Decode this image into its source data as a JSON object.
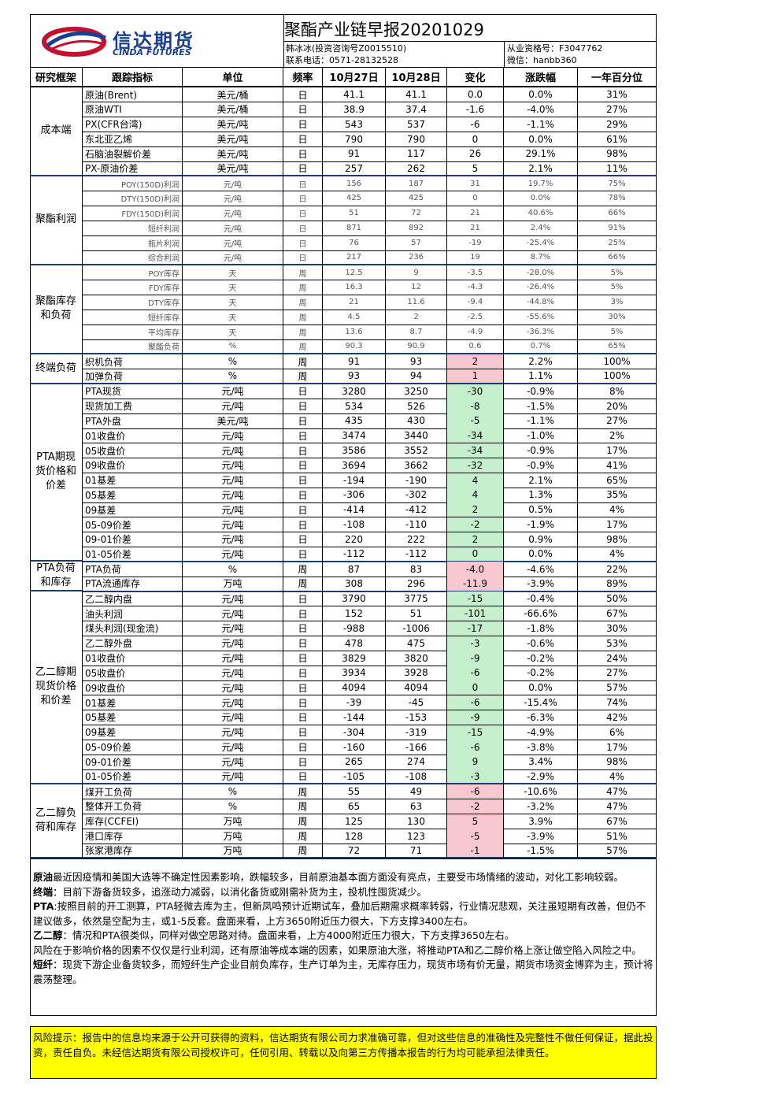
{
  "header": {
    "logo_cn": "信达期货",
    "logo_en": "CINDA FUTURES",
    "title": "聚酯产业链早报20201029",
    "analyst": "韩冰冰(投资咨询号Z0015510)",
    "phone": "联系电话：0571-28132528",
    "license": "从业资格号：F3047762",
    "wechat": "微信：hanbb360"
  },
  "table": {
    "columns": [
      "研究框架",
      "跟踪指标",
      "单位",
      "频率",
      "10月27日",
      "10月28日",
      "变化",
      "涨跌幅",
      "一年百分位"
    ],
    "groups": [
      {
        "name": "成本端",
        "rows": [
          [
            "原油(Brent)",
            "美元/桶",
            "日",
            "41.1",
            "41.1",
            "0.0",
            "0.0%",
            "31%"
          ],
          [
            "原油WTI",
            "美元/桶",
            "日",
            "38.9",
            "37.4",
            "-1.6",
            "-4.0%",
            "27%"
          ],
          [
            "PX(CFR台湾)",
            "美元/吨",
            "日",
            "543",
            "537",
            "-6",
            "-1.1%",
            "29%"
          ],
          [
            "东北亚乙烯",
            "美元/吨",
            "日",
            "790",
            "790",
            "0",
            "0.0%",
            "61%"
          ],
          [
            "石脑油裂解价差",
            "美元/吨",
            "日",
            "91",
            "117",
            "26",
            "29.1%",
            "98%"
          ],
          [
            "PX-原油价差",
            "美元/吨",
            "日",
            "257",
            "262",
            "5",
            "2.1%",
            "11%"
          ]
        ]
      },
      {
        "name": "聚酯利润",
        "rows": [
          [
            "POY(150D)利润",
            "元/吨",
            "日",
            "156",
            "187",
            "31",
            "19.7%",
            "75%"
          ],
          [
            "DTY(150D)利润",
            "元/吨",
            "日",
            "425",
            "425",
            "0",
            "0.0%",
            "78%"
          ],
          [
            "FDY(150D)利润",
            "元/吨",
            "日",
            "51",
            "72",
            "21",
            "40.6%",
            "66%"
          ],
          [
            "短纤利润",
            "元/吨",
            "日",
            "871",
            "892",
            "21",
            "2.4%",
            "91%"
          ],
          [
            "瓶片利润",
            "元/吨",
            "日",
            "76",
            "57",
            "-19",
            "-25.4%",
            "25%"
          ],
          [
            "综合利润",
            "元/吨",
            "日",
            "217",
            "236",
            "19",
            "8.7%",
            "66%"
          ]
        ]
      },
      {
        "name": "聚酯库存和负荷",
        "rows": [
          [
            "POY库存",
            "天",
            "周",
            "12.5",
            "9",
            "-3.5",
            "-28.0%",
            "5%"
          ],
          [
            "FDY库存",
            "天",
            "周",
            "16.3",
            "12",
            "-4.3",
            "-26.4%",
            "5%"
          ],
          [
            "DTY库存",
            "天",
            "周",
            "21",
            "11.6",
            "-9.4",
            "-44.8%",
            "3%"
          ],
          [
            "短纤库存",
            "天",
            "周",
            "4.5",
            "2",
            "-2.5",
            "-55.6%",
            "30%"
          ],
          [
            "平均库存",
            "天",
            "周",
            "13.6",
            "8.7",
            "-4.9",
            "-36.3%",
            "5%"
          ],
          [
            "聚酯负荷",
            "%",
            "周",
            "90.3",
            "90.9",
            "0.6",
            "0.7%",
            "65%"
          ]
        ]
      },
      {
        "name": "终端负荷",
        "rows": [
          [
            "织机负荷",
            "%",
            "周",
            "91",
            "93",
            "2",
            "2.2%",
            "100%"
          ],
          [
            "加弹负荷",
            "%",
            "周",
            "93",
            "94",
            "1",
            "1.1%",
            "100%"
          ]
        ]
      },
      {
        "name": "PTA期现货价格和价差",
        "rows": [
          [
            "PTA现货",
            "元/吨",
            "日",
            "3280",
            "3250",
            "-30",
            "-0.9%",
            "8%"
          ],
          [
            "现货加工费",
            "元/吨",
            "日",
            "534",
            "526",
            "-8",
            "-1.5%",
            "20%"
          ],
          [
            "PTA外盘",
            "美元/吨",
            "日",
            "435",
            "430",
            "-5",
            "-1.1%",
            "27%"
          ],
          [
            "01收盘价",
            "元/吨",
            "日",
            "3474",
            "3440",
            "-34",
            "-1.0%",
            "2%"
          ],
          [
            "05收盘价",
            "元/吨",
            "日",
            "3586",
            "3552",
            "-34",
            "-0.9%",
            "17%"
          ],
          [
            "09收盘价",
            "元/吨",
            "日",
            "3694",
            "3662",
            "-32",
            "-0.9%",
            "41%"
          ],
          [
            "01基差",
            "元/吨",
            "日",
            "-194",
            "-190",
            "4",
            "2.1%",
            "65%"
          ],
          [
            "05基差",
            "元/吨",
            "日",
            "-306",
            "-302",
            "4",
            "1.3%",
            "35%"
          ],
          [
            "09基差",
            "元/吨",
            "日",
            "-414",
            "-412",
            "2",
            "0.5%",
            "4%"
          ],
          [
            "05-09价差",
            "元/吨",
            "日",
            "-108",
            "-110",
            "-2",
            "-1.9%",
            "17%"
          ],
          [
            "09-01价差",
            "元/吨",
            "日",
            "220",
            "222",
            "2",
            "0.9%",
            "98%"
          ],
          [
            "01-05价差",
            "元/吨",
            "日",
            "-112",
            "-112",
            "0",
            "0.0%",
            "4%"
          ]
        ]
      },
      {
        "name": "PTA负荷和库存",
        "rows": [
          [
            "PTA负荷",
            "%",
            "周",
            "87",
            "83",
            "-4.0",
            "-4.6%",
            "22%"
          ],
          [
            "PTA流通库存",
            "万吨",
            "周",
            "308",
            "296",
            "-11.9",
            "-3.9%",
            "89%"
          ]
        ]
      },
      {
        "name": "乙二醇期现货价格和价差",
        "rows": [
          [
            "乙二醇内盘",
            "元/吨",
            "日",
            "3790",
            "3775",
            "-15",
            "-0.4%",
            "50%"
          ],
          [
            "油头利润",
            "元/吨",
            "日",
            "152",
            "51",
            "-101",
            "-66.6%",
            "67%"
          ],
          [
            "煤头利润(现金流)",
            "元/吨",
            "日",
            "-988",
            "-1006",
            "-17",
            "-1.8%",
            "30%"
          ],
          [
            "乙二醇外盘",
            "元/吨",
            "日",
            "478",
            "475",
            "-3",
            "-0.6%",
            "53%"
          ],
          [
            "01收盘价",
            "元/吨",
            "日",
            "3829",
            "3820",
            "-9",
            "-0.2%",
            "24%"
          ],
          [
            "05收盘价",
            "元/吨",
            "日",
            "3934",
            "3928",
            "-6",
            "-0.2%",
            "27%"
          ],
          [
            "09收盘价",
            "元/吨",
            "日",
            "4094",
            "4094",
            "0",
            "0.0%",
            "57%"
          ],
          [
            "01基差",
            "元/吨",
            "日",
            "-39",
            "-45",
            "-6",
            "-15.4%",
            "74%"
          ],
          [
            "05基差",
            "元/吨",
            "日",
            "-144",
            "-153",
            "-9",
            "-6.3%",
            "42%"
          ],
          [
            "09基差",
            "元/吨",
            "日",
            "-304",
            "-319",
            "-15",
            "-4.9%",
            "6%"
          ],
          [
            "05-09价差",
            "元/吨",
            "日",
            "-160",
            "-166",
            "-6",
            "-3.8%",
            "17%"
          ],
          [
            "09-01价差",
            "元/吨",
            "日",
            "265",
            "274",
            "9",
            "3.4%",
            "98%"
          ],
          [
            "01-05价差",
            "元/吨",
            "日",
            "-105",
            "-108",
            "-3",
            "-2.9%",
            "4%"
          ]
        ]
      },
      {
        "name": "乙二醇负荷和库存",
        "rows": [
          [
            "煤开工负荷",
            "%",
            "周",
            "55",
            "49",
            "-6",
            "-10.6%",
            "47%"
          ],
          [
            "整体开工负荷",
            "%",
            "周",
            "65",
            "63",
            "-2",
            "-3.2%",
            "47%"
          ],
          [
            "库存(CCFEI)",
            "万吨",
            "周",
            "125",
            "130",
            "5",
            "3.9%",
            "67%"
          ],
          [
            "港口库存",
            "万吨",
            "周",
            "128",
            "123",
            "-5",
            "-3.9%",
            "51%"
          ],
          [
            "张家港库存",
            "万吨",
            "周",
            "72",
            "71",
            "-1",
            "-1.5%",
            "57%"
          ]
        ]
      }
    ]
  },
  "notes": [
    {
      "label": "原油",
      "text": "最近因疫情和美国大选等不确定性因素影响，跌幅较多，目前原油基本面方面没有亮点，主要受市场情绪的波动，对化工影响较弱。"
    },
    {
      "label": "终端",
      "text": "：目前下游备货较多，追涨动力减弱，以消化备货或刚需补货为主，投机性囤货减少。"
    },
    {
      "label": "PTA",
      "text": ":按照目前的开工测算，PTA轻微去库为主，但新凤鸣预计近期试车，叠加后期需求概率转弱，行业情况悲观，关注虽短期有改善，但仍不建议做多，依然是空配为主，或1-5反套。盘面来看，上方3650附近压力很大，下方支撑3400左右。"
    },
    {
      "label": "乙二醇",
      "text": "：情况和PTA很类似，同样对做空思路对待。盘面来看，上方4000附近压力很大，下方支撑3650左右。"
    },
    {
      "text": "风险在于影响价格的因素不仅仅是行业利润，还有原油等成本端的因素，如果原油大涨，将推动PTA和乙二醇价格上涨让做空陷入风险之中。"
    },
    {
      "label": "短纤",
      "text": "：现货下游企业备货较多，而短纤生产企业目前负库存，生产订单为主，无库存压力，现货市场有价无量，期货市场资金博弈为主，预计将震荡整理。"
    }
  ],
  "risk": "风险提示：报告中的信息均来源于公开可获得的资料，信达期货有限公司力求准确可靠，但对这些信息的准确性及完整性不做任何保证，据此投资，责任自负。未经信达期货有限公司授权许可，任何引用、转载以及向第三方传播本报告的行为均可能承担法律责任。"
}
